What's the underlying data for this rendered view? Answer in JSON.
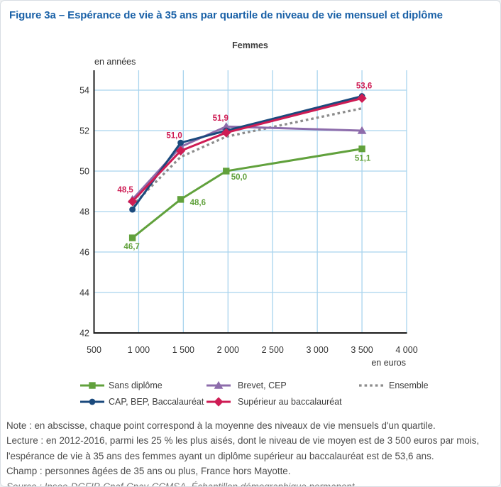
{
  "figure": {
    "title": "Figure 3a – Espérance de vie à 35 ans par quartile de niveau de vie mensuel et diplôme",
    "subtitle": "Femmes"
  },
  "colors": {
    "title_blue": "#1a61a7",
    "grid_blue": "#a9d4ee",
    "axis_black": "#1a1a1a",
    "tick_text": "#333333",
    "footer_text": "#4b4b4b"
  },
  "chart_data": {
    "type": "line",
    "title": "Femmes",
    "xlabel": "en euros",
    "ylabel": "en années",
    "xlim": [
      500,
      4000
    ],
    "ylim": [
      42,
      54.9
    ],
    "grid": true,
    "legend_position": "bottom",
    "x_ticks": [
      "500",
      "1 000",
      "1 500",
      "2 000",
      "2 500",
      "3 000",
      "3 500",
      "4 000"
    ],
    "x_tick_values": [
      500,
      1000,
      1500,
      2000,
      2500,
      3000,
      3500,
      4000
    ],
    "y_ticks": [
      42,
      44,
      46,
      48,
      50,
      52,
      54
    ],
    "x": [
      930,
      1470,
      1980,
      3500
    ],
    "series": [
      {
        "id": "sans-diplome",
        "name": "Sans diplôme",
        "color": "#61a13c",
        "marker": "square",
        "dashed": false,
        "values": [
          46.7,
          48.6,
          50.0,
          51.1
        ],
        "point_labels": [
          "46,7",
          "48,6",
          "50,0",
          "51,1"
        ]
      },
      {
        "id": "cap-bep-baccalaureat",
        "name": "CAP, BEP, Baccalauréat",
        "color": "#1b4a7d",
        "marker": "circle",
        "dashed": false,
        "values": [
          48.1,
          51.4,
          52.0,
          53.7
        ],
        "point_labels": []
      },
      {
        "id": "brevet-cep",
        "name": "Brevet, CEP",
        "color": "#8d6cab",
        "marker": "triangle",
        "dashed": false,
        "values": [
          48.6,
          51.2,
          52.2,
          52.0
        ],
        "point_labels": []
      },
      {
        "id": "superieur-au-baccalaureat",
        "name": "Supérieur au baccalauréat",
        "color": "#ce1c54",
        "marker": "diamond",
        "dashed": false,
        "values": [
          48.5,
          51.0,
          51.9,
          53.6
        ],
        "point_labels": [
          "48,5",
          "51,0",
          "51,9",
          "53,6"
        ]
      },
      {
        "id": "ensemble",
        "name": "Ensemble",
        "color": "#8c8c8c",
        "marker": "none",
        "dashed": true,
        "values": [
          48.3,
          50.7,
          51.7,
          53.1
        ],
        "point_labels": []
      }
    ]
  },
  "notes": {
    "note": "Note : en abscisse, chaque point correspond à la moyenne des niveaux de vie mensuels d'un quartile.",
    "lecture": "Lecture : en 2012-2016, parmi les 25 % les plus aisés, dont le niveau de vie moyen est de 3 500 euros par mois, l'espérance de vie à 35 ans des femmes ayant un diplôme supérieur au baccalauréat est de 53,6 ans.",
    "champ": "Champ : personnes âgées de 35 ans ou plus, France hors Mayotte.",
    "source": "Source : Insee-DGFIP-Cnaf-Cnav-CCMSA, Échantillon démographique permanent."
  }
}
